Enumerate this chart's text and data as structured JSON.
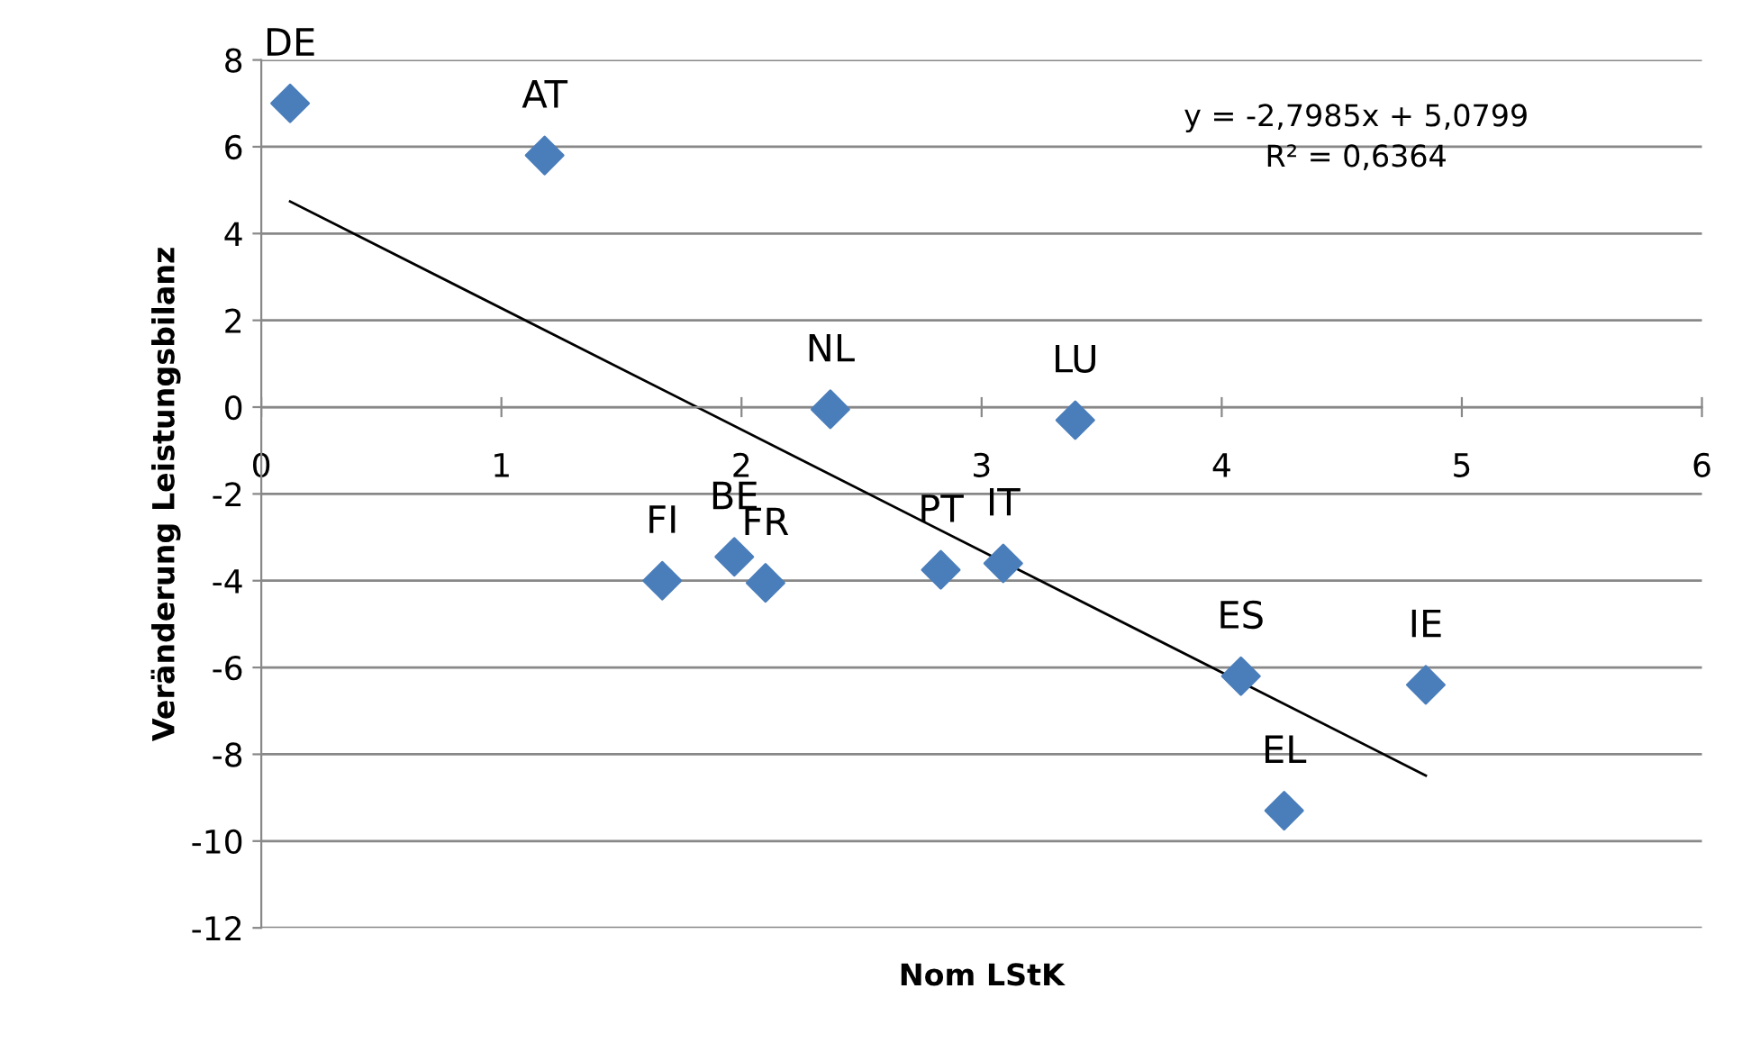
{
  "chart_data": {
    "type": "scatter",
    "xlabel": "Nom LStK",
    "ylabel": "Veränderung Leistungsbilanz",
    "xlim": [
      0,
      6
    ],
    "xticks": [
      0,
      1,
      2,
      3,
      4,
      5,
      6
    ],
    "ylim": [
      -12,
      8
    ],
    "yticks": [
      -12,
      -10,
      -8,
      -6,
      -4,
      -2,
      0,
      2,
      4,
      6,
      8
    ],
    "grid": "y",
    "marker": "diamond",
    "series": [
      {
        "color": "#4a7ebb",
        "x": [
          0.12,
          1.18,
          2.37,
          3.39,
          1.67,
          1.97,
          2.1,
          2.83,
          3.09,
          4.08,
          4.85,
          4.26
        ],
        "values": [
          7.0,
          5.8,
          -0.05,
          -0.3,
          -4.0,
          -3.45,
          -4.05,
          -3.75,
          -3.6,
          -6.2,
          -6.4,
          -9.3
        ]
      },
      {
        "type": "line",
        "color": "#000000",
        "marker": "none",
        "line_style": "solid",
        "x": [
          0.12,
          4.85
        ],
        "values": [
          4.74,
          -8.49
        ]
      }
    ],
    "annotations": [
      {
        "text": "DE",
        "x": 0.12,
        "y": 7.0
      },
      {
        "text": "AT",
        "x": 1.18,
        "y": 5.8
      },
      {
        "text": "NL",
        "x": 2.37,
        "y": -0.05
      },
      {
        "text": "LU",
        "x": 3.39,
        "y": -0.3
      },
      {
        "text": "FI",
        "x": 1.67,
        "y": -4.0
      },
      {
        "text": "BE",
        "x": 1.97,
        "y": -3.45
      },
      {
        "text": "FR",
        "x": 2.1,
        "y": -4.05
      },
      {
        "text": "PT",
        "x": 2.83,
        "y": -3.75
      },
      {
        "text": "IT",
        "x": 3.09,
        "y": -3.6
      },
      {
        "text": "ES",
        "x": 4.08,
        "y": -6.2
      },
      {
        "text": "IE",
        "x": 4.85,
        "y": -6.4
      },
      {
        "text": "EL",
        "x": 4.26,
        "y": -9.3
      },
      "y = -2,7985x + 5,0799\nR² = 0,6364"
    ]
  }
}
